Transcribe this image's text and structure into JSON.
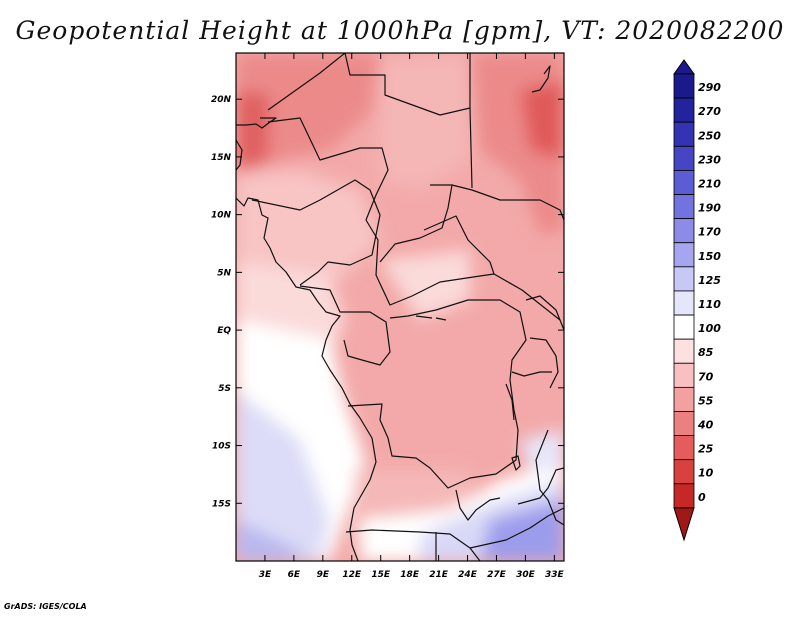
{
  "title": "Geopotential Height at 1000hPa [gpm], VT: 2020082200",
  "credit": "GrADS: IGES/COLA",
  "map": {
    "variable": "Geopotential Height at 1000hPa",
    "units": "gpm",
    "valid_time": "2020082200",
    "lat_range": [
      -20,
      24
    ],
    "lon_range": [
      0,
      34
    ],
    "lat_ticks": [
      "20N",
      "15N",
      "10N",
      "5N",
      "EQ",
      "5S",
      "10S",
      "15S"
    ],
    "lon_ticks": [
      "3E",
      "6E",
      "9E",
      "12E",
      "15E",
      "18E",
      "21E",
      "24E",
      "27E",
      "30E",
      "33E"
    ]
  },
  "colorbar": {
    "labels": [
      "290",
      "270",
      "250",
      "230",
      "210",
      "190",
      "170",
      "150",
      "125",
      "110",
      "100",
      "85",
      "70",
      "55",
      "40",
      "25",
      "10",
      "0"
    ],
    "colors": [
      "#1a1a8c",
      "#23239e",
      "#3333b3",
      "#4646c4",
      "#5c5cd4",
      "#7373e0",
      "#8c8ce8",
      "#a6a6f0",
      "#c8c8f6",
      "#e6e6fa",
      "#ffffff",
      "#fde0e0",
      "#f8c0c0",
      "#f2a0a0",
      "#ec8080",
      "#e65c5c",
      "#d94040",
      "#c62828",
      "#a01818"
    ]
  }
}
